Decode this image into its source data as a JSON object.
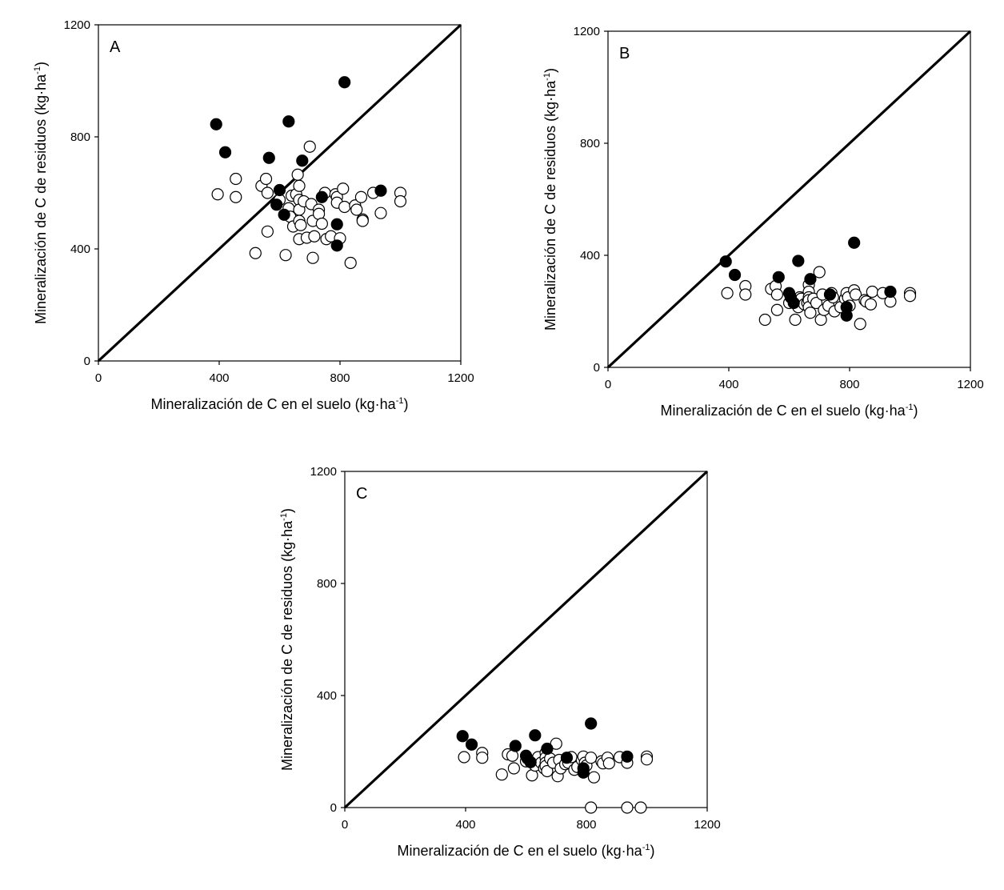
{
  "chart_data": [
    {
      "type": "scatter",
      "panel_label": "A",
      "xlabel": "Mineralización de C en el suelo (kg·ha",
      "xlabel_sup": "-1",
      "xlabel_end": ")",
      "ylabel": "Mineralización de C de residuos (kg·ha",
      "ylabel_sup": "-1",
      "ylabel_end": ")",
      "xlim": [
        0,
        1200
      ],
      "ylim": [
        0,
        1200
      ],
      "xticks": [
        "0",
        "400",
        "800",
        "1200"
      ],
      "yticks": [
        "0",
        "400",
        "800",
        "1200"
      ],
      "reference_line": "1:1",
      "series": [
        {
          "name": "open",
          "marker": "open-circle",
          "points": [
            [
              395,
              595
            ],
            [
              455,
              650
            ],
            [
              455,
              585
            ],
            [
              540,
              625
            ],
            [
              555,
              650
            ],
            [
              560,
              600
            ],
            [
              560,
              462
            ],
            [
              520,
              385
            ],
            [
              620,
              378
            ],
            [
              600,
              575
            ],
            [
              630,
              545
            ],
            [
              635,
              515
            ],
            [
              640,
              590
            ],
            [
              645,
              480
            ],
            [
              655,
              595
            ],
            [
              660,
              665
            ],
            [
              665,
              625
            ],
            [
              665,
              575
            ],
            [
              665,
              540
            ],
            [
              665,
              500
            ],
            [
              665,
              435
            ],
            [
              670,
              485
            ],
            [
              680,
              570
            ],
            [
              690,
              440
            ],
            [
              700,
              765
            ],
            [
              705,
              560
            ],
            [
              710,
              500
            ],
            [
              710,
              368
            ],
            [
              715,
              445
            ],
            [
              730,
              540
            ],
            [
              730,
              525
            ],
            [
              740,
              490
            ],
            [
              750,
              600
            ],
            [
              755,
              435
            ],
            [
              770,
              445
            ],
            [
              785,
              595
            ],
            [
              790,
              585
            ],
            [
              790,
              565
            ],
            [
              800,
              438
            ],
            [
              810,
              615
            ],
            [
              815,
              550
            ],
            [
              835,
              350
            ],
            [
              850,
              555
            ],
            [
              855,
              540
            ],
            [
              870,
              585
            ],
            [
              875,
              505
            ],
            [
              875,
              500
            ],
            [
              910,
              600
            ],
            [
              935,
              528
            ],
            [
              1000,
              600
            ],
            [
              1000,
              570
            ]
          ]
        },
        {
          "name": "filled",
          "marker": "filled-circle",
          "points": [
            [
              390,
              845
            ],
            [
              420,
              745
            ],
            [
              565,
              725
            ],
            [
              590,
              558
            ],
            [
              600,
              610
            ],
            [
              615,
              522
            ],
            [
              630,
              855
            ],
            [
              675,
              715
            ],
            [
              740,
              585
            ],
            [
              790,
              488
            ],
            [
              790,
              412
            ],
            [
              815,
              995
            ],
            [
              935,
              608
            ]
          ]
        }
      ]
    },
    {
      "type": "scatter",
      "panel_label": "B",
      "xlabel": "Mineralización de C en el suelo (kg·ha",
      "xlabel_sup": "-1",
      "xlabel_end": ")",
      "ylabel": "Mineralización de C de residuos (kg·ha",
      "ylabel_sup": "-1",
      "ylabel_end": ")",
      "xlim": [
        0,
        1200
      ],
      "ylim": [
        0,
        1200
      ],
      "xticks": [
        "0",
        "400",
        "800",
        "1200"
      ],
      "yticks": [
        "0",
        "400",
        "800",
        "1200"
      ],
      "reference_line": "1:1",
      "series": [
        {
          "name": "open",
          "marker": "open-circle",
          "points": [
            [
              395,
              265
            ],
            [
              455,
              290
            ],
            [
              455,
              260
            ],
            [
              520,
              170
            ],
            [
              540,
              280
            ],
            [
              555,
              290
            ],
            [
              560,
              205
            ],
            [
              560,
              260
            ],
            [
              600,
              230
            ],
            [
              620,
              170
            ],
            [
              630,
              215
            ],
            [
              635,
              250
            ],
            [
              640,
              245
            ],
            [
              650,
              225
            ],
            [
              660,
              230
            ],
            [
              665,
              295
            ],
            [
              665,
              270
            ],
            [
              665,
              250
            ],
            [
              665,
              240
            ],
            [
              665,
              215
            ],
            [
              670,
              195
            ],
            [
              680,
              245
            ],
            [
              690,
              230
            ],
            [
              700,
              340
            ],
            [
              705,
              170
            ],
            [
              710,
              260
            ],
            [
              715,
              205
            ],
            [
              730,
              220
            ],
            [
              740,
              265
            ],
            [
              745,
              250
            ],
            [
              750,
              200
            ],
            [
              770,
              215
            ],
            [
              785,
              245
            ],
            [
              790,
              265
            ],
            [
              795,
              250
            ],
            [
              800,
              220
            ],
            [
              815,
              275
            ],
            [
              820,
              260
            ],
            [
              835,
              155
            ],
            [
              850,
              240
            ],
            [
              855,
              235
            ],
            [
              870,
              225
            ],
            [
              875,
              270
            ],
            [
              910,
              265
            ],
            [
              935,
              235
            ],
            [
              1000,
              265
            ],
            [
              1000,
              255
            ]
          ]
        },
        {
          "name": "filled",
          "marker": "filled-circle",
          "points": [
            [
              390,
              378
            ],
            [
              420,
              330
            ],
            [
              565,
              322
            ],
            [
              600,
              265
            ],
            [
              605,
              250
            ],
            [
              615,
              230
            ],
            [
              630,
              380
            ],
            [
              670,
              315
            ],
            [
              735,
              260
            ],
            [
              790,
              215
            ],
            [
              790,
              185
            ],
            [
              815,
              445
            ],
            [
              935,
              270
            ]
          ]
        }
      ]
    },
    {
      "type": "scatter",
      "panel_label": "C",
      "xlabel": "Mineralización de C en el suelo (kg·ha",
      "xlabel_sup": "-1",
      "xlabel_end": ")",
      "ylabel": "Mineralización de C de residuos (kg·ha",
      "ylabel_sup": "-1",
      "ylabel_end": ")",
      "xlim": [
        0,
        1200
      ],
      "ylim": [
        0,
        1200
      ],
      "xticks": [
        "0",
        "400",
        "800",
        "1200"
      ],
      "yticks": [
        "0",
        "400",
        "800",
        "1200"
      ],
      "reference_line": "1:1",
      "series": [
        {
          "name": "open",
          "marker": "open-circle",
          "points": [
            [
              395,
              180
            ],
            [
              455,
              195
            ],
            [
              455,
              178
            ],
            [
              520,
              118
            ],
            [
              540,
              190
            ],
            [
              555,
              185
            ],
            [
              560,
              140
            ],
            [
              600,
              165
            ],
            [
              620,
              115
            ],
            [
              630,
              150
            ],
            [
              640,
              180
            ],
            [
              650,
              160
            ],
            [
              660,
              140
            ],
            [
              665,
              195
            ],
            [
              665,
              178
            ],
            [
              665,
              160
            ],
            [
              665,
              148
            ],
            [
              670,
              130
            ],
            [
              680,
              175
            ],
            [
              690,
              160
            ],
            [
              700,
              228
            ],
            [
              705,
              112
            ],
            [
              710,
              170
            ],
            [
              715,
              140
            ],
            [
              730,
              155
            ],
            [
              740,
              160
            ],
            [
              750,
              180
            ],
            [
              760,
              135
            ],
            [
              770,
              145
            ],
            [
              785,
              170
            ],
            [
              790,
              182
            ],
            [
              795,
              160
            ],
            [
              800,
              150
            ],
            [
              815,
              178
            ],
            [
              825,
              108
            ],
            [
              850,
              165
            ],
            [
              855,
              158
            ],
            [
              870,
              178
            ],
            [
              875,
              158
            ],
            [
              910,
              180
            ],
            [
              935,
              160
            ],
            [
              1000,
              182
            ],
            [
              1000,
              172
            ],
            [
              815,
              0
            ],
            [
              935,
              0
            ],
            [
              980,
              0
            ]
          ]
        },
        {
          "name": "filled",
          "marker": "filled-circle",
          "points": [
            [
              390,
              255
            ],
            [
              420,
              225
            ],
            [
              565,
              220
            ],
            [
              600,
              185
            ],
            [
              605,
              175
            ],
            [
              615,
              162
            ],
            [
              630,
              258
            ],
            [
              670,
              210
            ],
            [
              735,
              178
            ],
            [
              790,
              140
            ],
            [
              790,
              125
            ],
            [
              815,
              300
            ],
            [
              935,
              182
            ]
          ]
        }
      ]
    }
  ]
}
